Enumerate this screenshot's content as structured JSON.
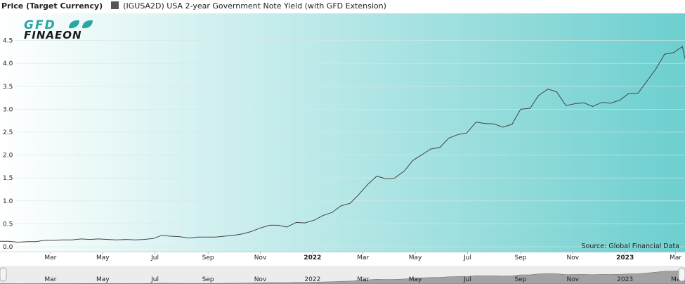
{
  "legend": {
    "y_axis_label": "Price (Target Currency)",
    "series_label": "(IGUSA2D) USA 2-year Government Note Yield (with GFD Extension)",
    "series_color": "#555555"
  },
  "logo": {
    "line1": "GFD",
    "line2": "FINAEON"
  },
  "source_text": "Source: Global Financial Data",
  "colors": {
    "bg_left": "#ffffff",
    "bg_right": "#6dcfcf",
    "line": "#444444",
    "logo_accent": "#2aa6a0",
    "logo_text": "#1a1a1a",
    "navigator_fill": "#8a8a8a"
  },
  "chart_data": {
    "type": "line",
    "title": "",
    "xlabel": "",
    "ylabel": "Price (Target Currency)",
    "xlim": [
      "2021-01-01",
      "2023-03-12"
    ],
    "ylim": [
      0,
      5.0
    ],
    "y_ticks": [
      "0.0",
      "0.5",
      "1.0",
      "1.5",
      "2.0",
      "2.5",
      "3.0",
      "3.5",
      "4.0",
      "4.5"
    ],
    "x_ticks": [
      {
        "date": "2021-03-01",
        "label": "Mar",
        "strong": false
      },
      {
        "date": "2021-05-01",
        "label": "May",
        "strong": false
      },
      {
        "date": "2021-07-01",
        "label": "Jul",
        "strong": false
      },
      {
        "date": "2021-09-01",
        "label": "Sep",
        "strong": false
      },
      {
        "date": "2021-11-01",
        "label": "Nov",
        "strong": false
      },
      {
        "date": "2022-01-01",
        "label": "2022",
        "strong": true
      },
      {
        "date": "2022-03-01",
        "label": "Mar",
        "strong": false
      },
      {
        "date": "2022-05-01",
        "label": "May",
        "strong": false
      },
      {
        "date": "2022-07-01",
        "label": "Jul",
        "strong": false
      },
      {
        "date": "2022-09-01",
        "label": "Sep",
        "strong": false
      },
      {
        "date": "2022-11-01",
        "label": "Nov",
        "strong": false
      },
      {
        "date": "2023-01-01",
        "label": "2023",
        "strong": true
      },
      {
        "date": "2023-03-01",
        "label": "Mar",
        "strong": false
      }
    ],
    "navigator_ticks": [
      {
        "date": "2021-03-01",
        "label": "Mar"
      },
      {
        "date": "2021-05-01",
        "label": "May"
      },
      {
        "date": "2021-07-01",
        "label": "Jul"
      },
      {
        "date": "2021-09-01",
        "label": "Sep"
      },
      {
        "date": "2021-11-01",
        "label": "Nov"
      },
      {
        "date": "2022-01-01",
        "label": "2022"
      },
      {
        "date": "2022-03-01",
        "label": "Mar"
      },
      {
        "date": "2022-05-01",
        "label": "May"
      },
      {
        "date": "2022-07-01",
        "label": "Jul"
      },
      {
        "date": "2022-09-01",
        "label": "Sep"
      },
      {
        "date": "2022-11-01",
        "label": "Nov"
      },
      {
        "date": "2023-01-01",
        "label": "2023"
      },
      {
        "date": "2023-03-01",
        "label": "Ma"
      }
    ],
    "grid": {
      "horizontal": true,
      "vertical": false
    },
    "legend_position": "top-left",
    "series": [
      {
        "name": "(IGUSA2D) USA 2-year Government Note Yield (with GFD Extension)",
        "points": [
          [
            "2021-01-01",
            0.12
          ],
          [
            "2021-01-11",
            0.12
          ],
          [
            "2021-01-22",
            0.1
          ],
          [
            "2021-02-02",
            0.11
          ],
          [
            "2021-02-12",
            0.11
          ],
          [
            "2021-02-22",
            0.14
          ],
          [
            "2021-03-05",
            0.14
          ],
          [
            "2021-03-15",
            0.15
          ],
          [
            "2021-03-26",
            0.15
          ],
          [
            "2021-04-06",
            0.17
          ],
          [
            "2021-04-16",
            0.16
          ],
          [
            "2021-04-26",
            0.17
          ],
          [
            "2021-05-07",
            0.16
          ],
          [
            "2021-05-17",
            0.15
          ],
          [
            "2021-05-28",
            0.16
          ],
          [
            "2021-06-08",
            0.15
          ],
          [
            "2021-06-18",
            0.16
          ],
          [
            "2021-06-29",
            0.18
          ],
          [
            "2021-07-09",
            0.25
          ],
          [
            "2021-07-19",
            0.23
          ],
          [
            "2021-07-30",
            0.22
          ],
          [
            "2021-08-10",
            0.19
          ],
          [
            "2021-08-20",
            0.21
          ],
          [
            "2021-08-31",
            0.21
          ],
          [
            "2021-09-10",
            0.21
          ],
          [
            "2021-09-20",
            0.23
          ],
          [
            "2021-10-01",
            0.25
          ],
          [
            "2021-10-11",
            0.28
          ],
          [
            "2021-10-21",
            0.33
          ],
          [
            "2021-11-01",
            0.41
          ],
          [
            "2021-11-12",
            0.47
          ],
          [
            "2021-11-22",
            0.47
          ],
          [
            "2021-12-02",
            0.43
          ],
          [
            "2021-12-13",
            0.53
          ],
          [
            "2021-12-23",
            0.52
          ],
          [
            "2022-01-03",
            0.58
          ],
          [
            "2022-01-13",
            0.68
          ],
          [
            "2022-01-24",
            0.75
          ],
          [
            "2022-02-03",
            0.89
          ],
          [
            "2022-02-14",
            0.95
          ],
          [
            "2022-02-24",
            1.14
          ],
          [
            "2022-03-07",
            1.37
          ],
          [
            "2022-03-17",
            1.54
          ],
          [
            "2022-03-28",
            1.48
          ],
          [
            "2022-04-07",
            1.5
          ],
          [
            "2022-04-18",
            1.65
          ],
          [
            "2022-04-28",
            1.88
          ],
          [
            "2022-05-09",
            2.01
          ],
          [
            "2022-05-19",
            2.13
          ],
          [
            "2022-05-30",
            2.17
          ],
          [
            "2022-06-09",
            2.37
          ],
          [
            "2022-06-20",
            2.45
          ],
          [
            "2022-06-30",
            2.48
          ],
          [
            "2022-07-11",
            2.72
          ],
          [
            "2022-07-21",
            2.69
          ],
          [
            "2022-08-01",
            2.68
          ],
          [
            "2022-08-11",
            2.61
          ],
          [
            "2022-08-22",
            2.67
          ],
          [
            "2022-09-01",
            3.0
          ],
          [
            "2022-09-12",
            3.02
          ],
          [
            "2022-09-22",
            3.3
          ],
          [
            "2022-10-03",
            3.44
          ],
          [
            "2022-10-13",
            3.38
          ],
          [
            "2022-10-24",
            3.08
          ],
          [
            "2022-11-03",
            3.12
          ],
          [
            "2022-11-14",
            3.14
          ],
          [
            "2022-11-24",
            3.06
          ],
          [
            "2022-12-05",
            3.15
          ],
          [
            "2022-12-15",
            3.13
          ],
          [
            "2022-12-26",
            3.2
          ],
          [
            "2023-01-05",
            3.34
          ],
          [
            "2023-01-16",
            3.35
          ],
          [
            "2023-01-26",
            3.6
          ],
          [
            "2023-02-06",
            3.88
          ],
          [
            "2023-02-16",
            4.2
          ],
          [
            "2023-02-27",
            4.24
          ],
          [
            "2023-03-09",
            4.37
          ],
          [
            "2023-03-12",
            4.1
          ]
        ]
      }
    ]
  }
}
